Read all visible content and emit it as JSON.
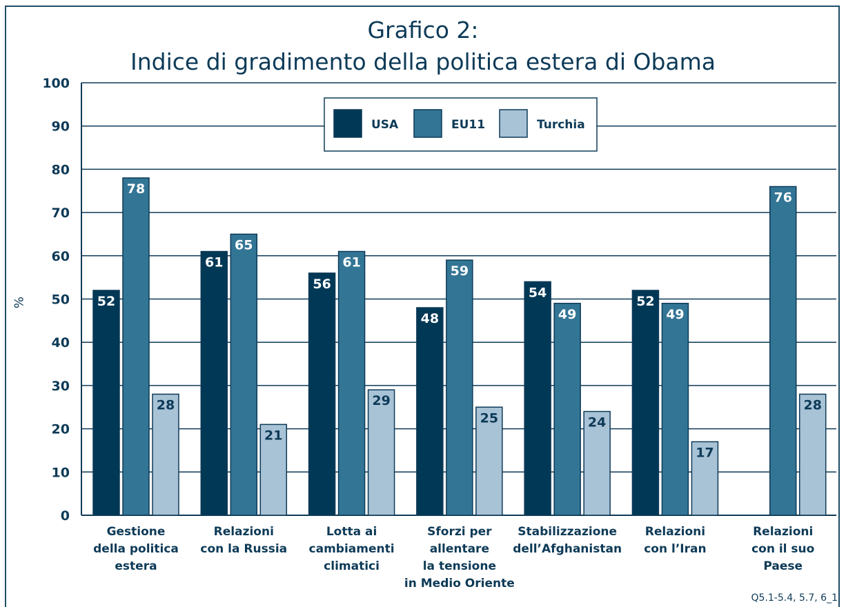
{
  "chart_data": {
    "type": "bar",
    "title": "Grafico 2:",
    "subtitle": "Indice di gradimento della politica estera di Obama",
    "xlabel": "",
    "ylabel": "%",
    "ylim": [
      0,
      100
    ],
    "yticks": [
      "0",
      "10",
      "20",
      "30",
      "40",
      "50",
      "60",
      "70",
      "80",
      "90",
      "100"
    ],
    "grid": true,
    "legend_position": "top-center",
    "categories": [
      [
        "Gestione",
        "della politica",
        "estera"
      ],
      [
        "Relazioni",
        "con la Russia"
      ],
      [
        "Lotta ai",
        "cambiamenti",
        "climatici"
      ],
      [
        "Sforzi per",
        "allentare",
        "la tensione",
        "in Medio Oriente"
      ],
      [
        "Stabilizzazione",
        "dell’Afghanistan"
      ],
      [
        "Relazioni",
        "con l’Iran"
      ],
      [
        "Relazioni",
        "con il suo",
        "Paese"
      ]
    ],
    "series": [
      {
        "name": "USA",
        "color": "#003856",
        "label_color": "#ffffff",
        "values": [
          52,
          61,
          56,
          48,
          54,
          52,
          null
        ]
      },
      {
        "name": "EU11",
        "color": "#337595",
        "label_color": "#ffffff",
        "values": [
          78,
          65,
          61,
          59,
          49,
          49,
          76
        ]
      },
      {
        "name": "Turchia",
        "color": "#a8c2d6",
        "label_color": "#0d3a57",
        "values": [
          28,
          21,
          29,
          25,
          24,
          17,
          28
        ]
      }
    ],
    "source_note": "Q5.1-5.4, 5.7, 6_1"
  }
}
